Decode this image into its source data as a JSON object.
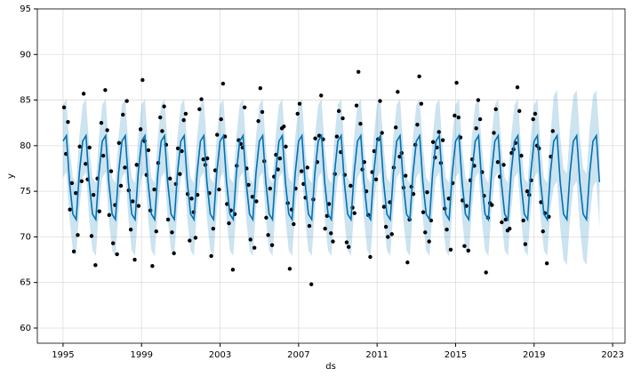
{
  "chart_data": {
    "type": "line",
    "xlabel": "ds",
    "ylabel": "y",
    "xlim": [
      1993.69,
      2023.63
    ],
    "ylim": [
      58.34,
      95
    ],
    "xticks": [
      1995,
      1999,
      2003,
      2007,
      2011,
      2015,
      2019,
      2023
    ],
    "yticks": [
      60,
      65,
      70,
      75,
      80,
      85,
      90,
      95
    ],
    "grid": true,
    "points": {
      "color": "#000000",
      "x": [
        1995.05,
        1995.15,
        1995.25,
        1995.35,
        1995.45,
        1995.55,
        1995.65,
        1995.75,
        1995.85,
        1995.95,
        1996.05,
        1996.15,
        1996.25,
        1996.35,
        1996.45,
        1996.55,
        1996.65,
        1996.75,
        1996.85,
        1996.95,
        1997.05,
        1997.15,
        1997.25,
        1997.35,
        1997.45,
        1997.55,
        1997.65,
        1997.75,
        1997.85,
        1997.95,
        1998.05,
        1998.15,
        1998.25,
        1998.35,
        1998.45,
        1998.55,
        1998.65,
        1998.75,
        1998.85,
        1998.95,
        1999.05,
        1999.15,
        1999.25,
        1999.35,
        1999.45,
        1999.55,
        1999.65,
        1999.75,
        1999.85,
        1999.95,
        2000.05,
        2000.15,
        2000.25,
        2000.35,
        2000.45,
        2000.55,
        2000.65,
        2000.75,
        2000.85,
        2000.95,
        2001.05,
        2001.15,
        2001.25,
        2001.35,
        2001.45,
        2001.55,
        2001.65,
        2001.75,
        2001.85,
        2001.95,
        2002.05,
        2002.15,
        2002.25,
        2002.35,
        2002.45,
        2002.55,
        2002.65,
        2002.75,
        2002.85,
        2002.95,
        2003.05,
        2003.15,
        2003.25,
        2003.35,
        2003.45,
        2003.55,
        2003.65,
        2003.75,
        2003.85,
        2003.95,
        2004.05,
        2004.15,
        2004.25,
        2004.35,
        2004.45,
        2004.55,
        2004.65,
        2004.75,
        2004.85,
        2004.95,
        2005.05,
        2005.15,
        2005.25,
        2005.35,
        2005.45,
        2005.55,
        2005.65,
        2005.75,
        2005.85,
        2005.95,
        2006.05,
        2006.15,
        2006.25,
        2006.35,
        2006.45,
        2006.55,
        2006.65,
        2006.75,
        2006.85,
        2006.95,
        2007.05,
        2007.15,
        2007.25,
        2007.35,
        2007.45,
        2007.55,
        2007.65,
        2007.75,
        2007.85,
        2007.95,
        2008.05,
        2008.15,
        2008.25,
        2008.35,
        2008.45,
        2008.55,
        2008.65,
        2008.75,
        2008.85,
        2008.95,
        2009.05,
        2009.15,
        2009.25,
        2009.35,
        2009.45,
        2009.55,
        2009.65,
        2009.75,
        2009.85,
        2009.95,
        2010.05,
        2010.15,
        2010.25,
        2010.35,
        2010.45,
        2010.55,
        2010.65,
        2010.75,
        2010.85,
        2010.95,
        2011.05,
        2011.15,
        2011.25,
        2011.35,
        2011.45,
        2011.55,
        2011.65,
        2011.75,
        2011.85,
        2011.95,
        2012.05,
        2012.15,
        2012.25,
        2012.35,
        2012.45,
        2012.55,
        2012.65,
        2012.75,
        2012.85,
        2012.95,
        2013.05,
        2013.15,
        2013.25,
        2013.35,
        2013.45,
        2013.55,
        2013.65,
        2013.75,
        2013.85,
        2013.95,
        2014.05,
        2014.15,
        2014.25,
        2014.35,
        2014.45,
        2014.55,
        2014.65,
        2014.75,
        2014.85,
        2014.95,
        2015.05,
        2015.15,
        2015.25,
        2015.35,
        2015.45,
        2015.55,
        2015.65,
        2015.75,
        2015.85,
        2015.95,
        2016.05,
        2016.15,
        2016.25,
        2016.35,
        2016.45,
        2016.55,
        2016.65,
        2016.75,
        2016.85,
        2016.95,
        2017.05,
        2017.15,
        2017.25,
        2017.35,
        2017.45,
        2017.55,
        2017.65,
        2017.75,
        2017.85,
        2017.95,
        2018.05,
        2018.15,
        2018.25,
        2018.35,
        2018.45,
        2018.55,
        2018.65,
        2018.75,
        2018.85,
        2018.95,
        2019.05,
        2019.15,
        2019.25,
        2019.35,
        2019.45,
        2019.55,
        2019.65,
        2019.75,
        2019.85,
        2019.95
      ],
      "y": [
        84.2,
        79.1,
        82.6,
        73.0,
        75.9,
        68.4,
        74.8,
        70.2,
        79.9,
        76.1,
        85.7,
        78.0,
        76.3,
        79.8,
        70.1,
        74.6,
        66.9,
        76.4,
        72.8,
        82.5,
        78.9,
        86.1,
        81.7,
        72.4,
        77.2,
        69.3,
        73.5,
        68.1,
        80.3,
        75.6,
        83.4,
        77.6,
        84.9,
        75.1,
        70.8,
        73.9,
        67.5,
        77.9,
        73.4,
        81.8,
        87.2,
        80.5,
        76.8,
        79.5,
        72.9,
        66.8,
        75.2,
        70.6,
        78.1,
        83.1,
        81.6,
        84.3,
        80.1,
        71.9,
        76.4,
        70.5,
        68.2,
        75.8,
        79.7,
        76.9,
        79.4,
        82.8,
        83.5,
        74.7,
        69.6,
        74.2,
        72.7,
        69.9,
        74.6,
        84.0,
        85.1,
        78.5,
        77.9,
        78.6,
        74.8,
        67.9,
        70.9,
        77.3,
        81.2,
        75.2,
        82.9,
        86.8,
        81.0,
        73.6,
        71.5,
        72.9,
        66.4,
        72.5,
        77.8,
        80.6,
        80.2,
        79.8,
        84.2,
        77.5,
        75.7,
        69.7,
        74.4,
        68.8,
        73.9,
        82.7,
        86.3,
        83.7,
        78.3,
        72.1,
        70.2,
        75.3,
        69.1,
        76.6,
        79.0,
        77.4,
        78.6,
        81.9,
        82.1,
        79.9,
        73.7,
        66.5,
        73.0,
        71.4,
        75.3,
        83.5,
        84.6,
        77.2,
        75.8,
        74.3,
        77.6,
        71.2,
        64.8,
        74.1,
        80.8,
        78.2,
        81.1,
        85.5,
        80.7,
        70.9,
        72.3,
        73.6,
        70.4,
        69.5,
        76.9,
        81.0,
        83.8,
        79.3,
        83.0,
        76.8,
        69.4,
        68.9,
        75.6,
        73.2,
        72.6,
        84.4,
        88.1,
        82.4,
        77.4,
        78.2,
        75.0,
        72.4,
        67.8,
        77.1,
        79.4,
        76.3,
        80.7,
        84.9,
        81.4,
        73.3,
        71.1,
        70.0,
        73.8,
        70.3,
        77.6,
        82.0,
        85.9,
        78.8,
        79.2,
        75.4,
        76.7,
        67.2,
        71.9,
        75.5,
        74.7,
        80.1,
        82.3,
        87.6,
        84.6,
        72.7,
        70.5,
        74.9,
        69.5,
        71.8,
        80.4,
        78.7,
        79.8,
        81.5,
        78.1,
        80.6,
        73.1,
        70.8,
        74.2,
        68.6,
        75.9,
        83.3,
        86.9,
        83.1,
        80.9,
        74.0,
        69.0,
        73.4,
        68.5,
        76.2,
        78.5,
        77.8,
        81.9,
        85.0,
        82.9,
        77.1,
        74.5,
        66.1,
        72.1,
        73.7,
        73.5,
        81.4,
        84.0,
        78.2,
        76.6,
        71.6,
        77.9,
        71.9,
        70.7,
        70.9,
        79.2,
        79.6,
        80.3,
        86.4,
        83.8,
        78.9,
        71.8,
        69.2,
        75.0,
        74.6,
        76.2,
        82.9,
        83.5,
        80.0,
        79.7,
        73.8,
        70.6,
        72.6,
        67.1,
        72.2,
        78.8,
        81.6
      ]
    },
    "forecast": {
      "color": "#0072B2",
      "band_color": "#0072B2",
      "x": [
        1995.0,
        1995.17,
        1995.33,
        1995.5,
        1995.67,
        1995.83,
        1996.0,
        1996.17,
        1996.33,
        1996.5,
        1996.67,
        1996.83,
        1997.0,
        1997.17,
        1997.33,
        1997.5,
        1997.67,
        1997.83,
        1998.0,
        1998.17,
        1998.33,
        1998.5,
        1998.67,
        1998.83,
        1999.0,
        1999.17,
        1999.33,
        1999.5,
        1999.67,
        1999.83,
        2000.0,
        2000.17,
        2000.33,
        2000.5,
        2000.67,
        2000.83,
        2001.0,
        2001.17,
        2001.33,
        2001.5,
        2001.67,
        2001.83,
        2002.0,
        2002.17,
        2002.33,
        2002.5,
        2002.67,
        2002.83,
        2003.0,
        2003.17,
        2003.33,
        2003.5,
        2003.67,
        2003.83,
        2004.0,
        2004.17,
        2004.33,
        2004.5,
        2004.67,
        2004.83,
        2005.0,
        2005.17,
        2005.33,
        2005.5,
        2005.67,
        2005.83,
        2006.0,
        2006.17,
        2006.33,
        2006.5,
        2006.67,
        2006.83,
        2007.0,
        2007.17,
        2007.33,
        2007.5,
        2007.67,
        2007.83,
        2008.0,
        2008.17,
        2008.33,
        2008.5,
        2008.67,
        2008.83,
        2009.0,
        2009.17,
        2009.33,
        2009.5,
        2009.67,
        2009.83,
        2010.0,
        2010.17,
        2010.33,
        2010.5,
        2010.67,
        2010.83,
        2011.0,
        2011.17,
        2011.33,
        2011.5,
        2011.67,
        2011.83,
        2012.0,
        2012.17,
        2012.33,
        2012.5,
        2012.67,
        2012.83,
        2013.0,
        2013.17,
        2013.33,
        2013.5,
        2013.67,
        2013.83,
        2014.0,
        2014.17,
        2014.33,
        2014.5,
        2014.67,
        2014.83,
        2015.0,
        2015.17,
        2015.33,
        2015.5,
        2015.67,
        2015.83,
        2016.0,
        2016.17,
        2016.33,
        2016.5,
        2016.67,
        2016.83,
        2017.0,
        2017.17,
        2017.33,
        2017.5,
        2017.67,
        2017.83,
        2018.0,
        2018.17,
        2018.33,
        2018.5,
        2018.67,
        2018.83,
        2019.0,
        2019.17,
        2019.33,
        2019.5,
        2019.67,
        2019.83,
        2020.0,
        2020.17,
        2020.33,
        2020.5,
        2020.67,
        2020.83,
        2021.0,
        2021.17,
        2021.33,
        2021.5,
        2021.67,
        2021.83,
        2022.0,
        2022.17,
        2022.33
      ],
      "yhat": [
        80.5,
        81.1,
        76.0,
        72.5,
        71.9,
        77.0,
        80.5,
        81.1,
        76.0,
        72.5,
        71.9,
        77.0,
        80.5,
        81.1,
        76.0,
        72.5,
        71.9,
        77.0,
        80.5,
        81.1,
        76.0,
        72.5,
        71.9,
        77.0,
        80.5,
        81.1,
        76.0,
        72.5,
        71.9,
        77.0,
        80.5,
        81.1,
        76.0,
        72.5,
        71.9,
        77.0,
        80.5,
        81.1,
        76.0,
        72.5,
        71.9,
        77.0,
        80.5,
        81.1,
        76.0,
        72.5,
        71.9,
        77.0,
        80.5,
        81.1,
        76.0,
        72.5,
        71.9,
        77.0,
        80.5,
        81.1,
        76.0,
        72.5,
        71.9,
        77.0,
        80.5,
        81.1,
        76.0,
        72.5,
        71.9,
        77.0,
        80.5,
        81.1,
        76.0,
        72.5,
        71.9,
        77.0,
        80.5,
        81.1,
        76.0,
        72.5,
        71.9,
        77.0,
        80.5,
        81.1,
        76.0,
        72.5,
        71.9,
        77.0,
        80.5,
        81.1,
        76.0,
        72.5,
        71.9,
        77.0,
        80.5,
        81.1,
        76.0,
        72.5,
        71.9,
        77.0,
        80.5,
        81.1,
        76.0,
        72.5,
        71.9,
        77.0,
        80.5,
        81.1,
        76.0,
        72.5,
        71.9,
        77.0,
        80.5,
        81.1,
        76.0,
        72.5,
        71.9,
        77.0,
        80.5,
        81.1,
        76.0,
        72.5,
        71.9,
        77.0,
        80.5,
        81.1,
        76.0,
        72.5,
        71.9,
        77.0,
        80.5,
        81.1,
        76.0,
        72.5,
        71.9,
        77.0,
        80.5,
        81.1,
        76.0,
        72.5,
        71.9,
        77.0,
        80.5,
        81.1,
        76.0,
        72.5,
        71.9,
        77.0,
        80.5,
        81.1,
        76.0,
        72.5,
        71.9,
        77.0,
        80.5,
        81.1,
        76.0,
        72.5,
        71.9,
        77.0,
        80.5,
        81.1,
        76.0,
        72.5,
        71.9,
        77.0,
        80.5,
        81.1,
        76.0
      ],
      "yhat_lower": [
        76.5,
        77.1,
        72.0,
        68.5,
        67.9,
        73.0,
        76.5,
        77.1,
        72.0,
        68.5,
        67.9,
        73.0,
        76.5,
        77.1,
        72.0,
        68.5,
        67.9,
        73.0,
        76.5,
        77.1,
        72.0,
        68.5,
        67.9,
        73.0,
        76.5,
        77.1,
        72.0,
        68.5,
        67.9,
        73.0,
        76.5,
        77.1,
        72.0,
        68.5,
        67.9,
        73.0,
        76.5,
        77.1,
        72.0,
        68.5,
        67.9,
        73.0,
        76.5,
        77.1,
        72.0,
        68.5,
        67.9,
        73.0,
        76.5,
        77.1,
        72.0,
        68.5,
        67.9,
        73.0,
        76.5,
        77.1,
        72.0,
        68.5,
        67.9,
        73.0,
        76.5,
        77.1,
        72.0,
        68.5,
        67.9,
        73.0,
        76.5,
        77.1,
        72.0,
        68.5,
        67.9,
        73.0,
        76.5,
        77.1,
        72.0,
        68.5,
        67.9,
        73.0,
        76.5,
        77.1,
        72.0,
        68.5,
        67.9,
        73.0,
        76.5,
        77.1,
        72.0,
        68.5,
        67.9,
        73.0,
        76.5,
        77.1,
        72.0,
        68.5,
        67.9,
        73.0,
        76.5,
        77.1,
        72.0,
        68.5,
        67.9,
        73.0,
        76.5,
        77.1,
        72.0,
        68.5,
        67.9,
        73.0,
        76.5,
        77.1,
        72.0,
        68.5,
        67.9,
        73.0,
        76.5,
        77.1,
        72.0,
        68.5,
        67.9,
        73.0,
        76.5,
        77.1,
        72.0,
        68.5,
        67.9,
        73.0,
        76.5,
        77.1,
        72.0,
        68.5,
        67.9,
        73.0,
        76.5,
        77.1,
        72.0,
        68.5,
        67.9,
        73.0,
        76.5,
        77.1,
        72.0,
        68.5,
        67.9,
        73.0,
        76.5,
        77.1,
        72.0,
        68.5,
        67.9,
        73.0,
        75.5,
        76.1,
        71.0,
        67.5,
        66.9,
        72.0,
        75.5,
        76.1,
        71.0,
        67.5,
        66.9,
        72.0,
        75.5,
        76.1,
        71.0
      ],
      "yhat_upper": [
        84.5,
        85.1,
        80.0,
        76.5,
        75.9,
        81.0,
        84.5,
        85.1,
        80.0,
        76.5,
        75.9,
        81.0,
        84.5,
        85.1,
        80.0,
        76.5,
        75.9,
        81.0,
        84.5,
        85.1,
        80.0,
        76.5,
        75.9,
        81.0,
        84.5,
        85.1,
        80.0,
        76.5,
        75.9,
        81.0,
        84.5,
        85.1,
        80.0,
        76.5,
        75.9,
        81.0,
        84.5,
        85.1,
        80.0,
        76.5,
        75.9,
        81.0,
        84.5,
        85.1,
        80.0,
        76.5,
        75.9,
        81.0,
        84.5,
        85.1,
        80.0,
        76.5,
        75.9,
        81.0,
        84.5,
        85.1,
        80.0,
        76.5,
        75.9,
        81.0,
        84.5,
        85.1,
        80.0,
        76.5,
        75.9,
        81.0,
        84.5,
        85.1,
        80.0,
        76.5,
        75.9,
        81.0,
        84.5,
        85.1,
        80.0,
        76.5,
        75.9,
        81.0,
        84.5,
        85.1,
        80.0,
        76.5,
        75.9,
        81.0,
        84.5,
        85.1,
        80.0,
        76.5,
        75.9,
        81.0,
        84.5,
        85.1,
        80.0,
        76.5,
        75.9,
        81.0,
        84.5,
        85.1,
        80.0,
        76.5,
        75.9,
        81.0,
        84.5,
        85.1,
        80.0,
        76.5,
        75.9,
        81.0,
        84.5,
        85.1,
        80.0,
        76.5,
        75.9,
        81.0,
        84.5,
        85.1,
        80.0,
        76.5,
        75.9,
        81.0,
        84.5,
        85.1,
        80.0,
        76.5,
        75.9,
        81.0,
        84.5,
        85.1,
        80.0,
        76.5,
        75.9,
        81.0,
        84.5,
        85.1,
        80.0,
        76.5,
        75.9,
        81.0,
        84.5,
        85.1,
        80.0,
        76.5,
        75.9,
        81.0,
        84.5,
        85.1,
        80.0,
        76.5,
        75.9,
        81.0,
        85.5,
        86.1,
        81.0,
        77.5,
        76.9,
        82.0,
        85.5,
        86.1,
        81.0,
        77.5,
        76.9,
        82.0,
        85.5,
        86.1,
        81.0
      ]
    }
  }
}
